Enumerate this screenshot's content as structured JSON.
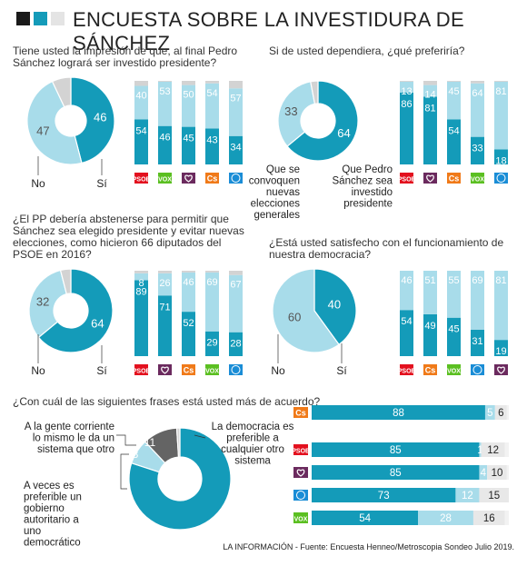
{
  "header": {
    "title": "ENCUESTA SOBRE LA INVESTIDURA DE SÁNCHEZ"
  },
  "colors": {
    "main": "#149bb9",
    "light": "#a8dcea",
    "grey": "#d3d3d3",
    "dark": "#646464",
    "black": "#1a1a1a"
  },
  "parties": {
    "psoe": {
      "label": "PSOE",
      "color": "#e3101e"
    },
    "vox": {
      "label": "VOX",
      "color": "#5bbf21"
    },
    "podemos": {
      "label": "",
      "color": "#6b2a5e",
      "icon": "podemos-heart-icon"
    },
    "cs": {
      "label": "Cs",
      "color": "#f07a19"
    },
    "pp": {
      "label": "",
      "color": "#1a8dd6",
      "icon": "pp-gull-icon"
    }
  },
  "chart_data": [
    {
      "type": "pie",
      "question": "Tiene usted la impresión de que, al final Pedro Sánchez logrará ser investido presidente?",
      "slices": [
        {
          "label": "Sí",
          "value": 46
        },
        {
          "label": "No",
          "value": 47
        },
        {
          "label": "",
          "value": 7
        }
      ],
      "bars": {
        "categories": [
          "psoe",
          "vox",
          "podemos",
          "cs",
          "pp"
        ],
        "bottom": [
          54,
          46,
          45,
          43,
          34
        ],
        "top": [
          40,
          53,
          50,
          54,
          57
        ]
      }
    },
    {
      "type": "pie",
      "question": "Si de usted dependiera, ¿qué preferiría?",
      "slices": [
        {
          "label": "Que Pedro Sánchez sea investido presidente",
          "value": 64
        },
        {
          "label": "Que se convoquen nuevas elecciones generales",
          "value": 33
        },
        {
          "label": "",
          "value": 3
        }
      ],
      "bars": {
        "categories": [
          "psoe",
          "podemos",
          "cs",
          "vox",
          "pp"
        ],
        "bottom": [
          86,
          81,
          54,
          33,
          18
        ],
        "top": [
          13,
          14,
          45,
          64,
          81
        ]
      }
    },
    {
      "type": "pie",
      "question": "¿El PP debería abstenerse para permitir que Sánchez sea elegido presidente y evitar nuevas elecciones, como hicieron 66 diputados del PSOE en 2016?",
      "slices": [
        {
          "label": "Sí",
          "value": 64
        },
        {
          "label": "No",
          "value": 32
        },
        {
          "label": "",
          "value": 4
        }
      ],
      "bars": {
        "categories": [
          "psoe",
          "podemos",
          "cs",
          "vox",
          "pp"
        ],
        "bottom": [
          89,
          71,
          52,
          29,
          28
        ],
        "top": [
          8,
          26,
          46,
          69,
          67
        ]
      }
    },
    {
      "type": "pie",
      "question": "¿Está usted satisfecho con el funcionamiento de nuestra democracia?",
      "slices": [
        {
          "label": "Sí",
          "value": 40
        },
        {
          "label": "No",
          "value": 60
        }
      ],
      "bars": {
        "categories": [
          "psoe",
          "cs",
          "vox",
          "pp",
          "podemos"
        ],
        "bottom": [
          54,
          49,
          45,
          31,
          19
        ],
        "top": [
          46,
          51,
          55,
          69,
          81
        ]
      }
    },
    {
      "type": "bar",
      "question": "¿Con cuál de las siguientes frases está usted más de acuerdo?",
      "slices": [
        {
          "label": "A veces es preferible un gobierno autoritario a uno democrático",
          "value": 80
        },
        {
          "label": "",
          "value": 8
        },
        {
          "label": "A la gente corriente lo mismo le da un sistema que otro",
          "value": 11
        },
        {
          "label": "La democracia es preferible a cualquier otro sistema",
          "value": 1
        }
      ],
      "rows": [
        {
          "party": "cs",
          "values": [
            88,
            5,
            6
          ]
        },
        {
          "party": "psoe",
          "values": [
            85,
            1,
            12
          ]
        },
        {
          "party": "podemos",
          "values": [
            85,
            4,
            10
          ]
        },
        {
          "party": "pp",
          "values": [
            73,
            12,
            15
          ]
        },
        {
          "party": "vox",
          "values": [
            54,
            28,
            16
          ]
        }
      ]
    }
  ],
  "footer": {
    "source": "LA INFORMACIÓN - Fuente: Encuesta Henneo/Metroscopia Sondeo Julio 2019."
  }
}
